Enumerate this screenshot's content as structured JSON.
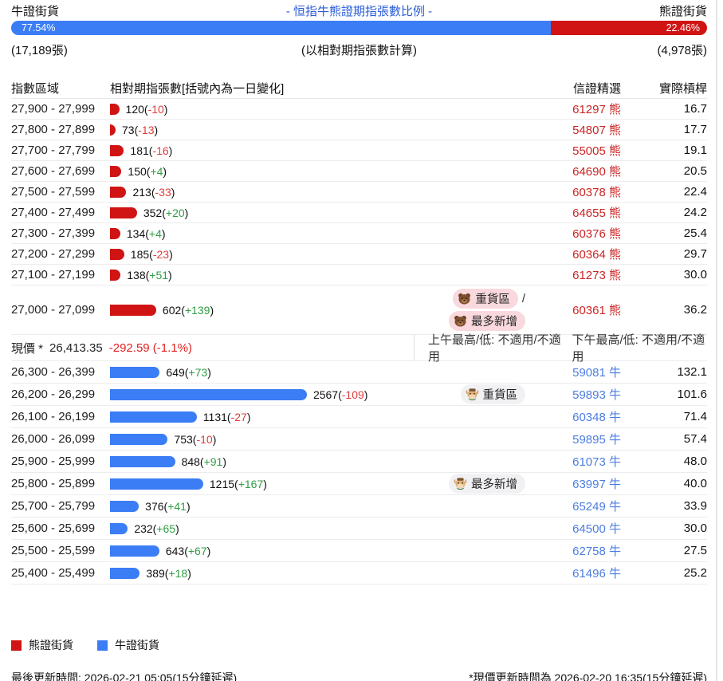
{
  "header": {
    "left_label": "牛證街貨",
    "title": "- 恒指牛熊證期指張數比例 -",
    "right_label": "熊證街貨",
    "bull_pct": "77.54%",
    "bear_pct": "22.46%",
    "bull_count": "(17,189張)",
    "calc_note": "(以相對期指張數計算)",
    "bear_count": "(4,978張)"
  },
  "columns": {
    "range": "指數區域",
    "contracts": "相對期指張數[括號內為一日變化]",
    "pick": "信證精選",
    "leverage": "實際槓桿"
  },
  "mid_row": {
    "price_label": "現價 *",
    "price": "26,413.35",
    "change": "-292.59 (-1.1%)",
    "am": "上午最高/低: 不適用/不適用",
    "pm": "下午最高/低: 不適用/不適用"
  },
  "colors": {
    "bull": "#3b7df5",
    "bear": "#d01414",
    "title_blue": "#2b5cd9",
    "positive": "#2e9e44",
    "negative": "#e03c3c",
    "pick_bull": "#4d7ee0",
    "pick_bear": "#cc2525"
  },
  "chart_data": {
    "type": "bar",
    "orientation": "horizontal",
    "title": "- 恒指牛熊證期指張數比例 -",
    "bull_pct": 77.54,
    "bear_pct": 22.46,
    "bull_total_contracts": 17189,
    "bear_total_contracts": 4978,
    "groups": [
      {
        "name": "熊證街貨",
        "type": "bear",
        "color": "#d01414",
        "rows": [
          {
            "range": "27,900 - 27,999",
            "value": 120,
            "change": -10,
            "pick_code": "61297",
            "pick_type": "熊",
            "leverage": "16.7",
            "badges": []
          },
          {
            "range": "27,800 - 27,899",
            "value": 73,
            "change": -13,
            "pick_code": "54807",
            "pick_type": "熊",
            "leverage": "17.7",
            "badges": []
          },
          {
            "range": "27,700 - 27,799",
            "value": 181,
            "change": -16,
            "pick_code": "55005",
            "pick_type": "熊",
            "leverage": "19.1",
            "badges": []
          },
          {
            "range": "27,600 - 27,699",
            "value": 150,
            "change": 4,
            "pick_code": "64690",
            "pick_type": "熊",
            "leverage": "20.5",
            "badges": []
          },
          {
            "range": "27,500 - 27,599",
            "value": 213,
            "change": -33,
            "pick_code": "60378",
            "pick_type": "熊",
            "leverage": "22.4",
            "badges": []
          },
          {
            "range": "27,400 - 27,499",
            "value": 352,
            "change": 20,
            "pick_code": "64655",
            "pick_type": "熊",
            "leverage": "24.2",
            "badges": []
          },
          {
            "range": "27,300 - 27,399",
            "value": 134,
            "change": 4,
            "pick_code": "60376",
            "pick_type": "熊",
            "leverage": "25.4",
            "badges": []
          },
          {
            "range": "27,200 - 27,299",
            "value": 185,
            "change": -23,
            "pick_code": "60364",
            "pick_type": "熊",
            "leverage": "29.7",
            "badges": []
          },
          {
            "range": "27,100 - 27,199",
            "value": 138,
            "change": 51,
            "pick_code": "61273",
            "pick_type": "熊",
            "leverage": "30.0",
            "badges": []
          },
          {
            "range": "27,000 - 27,099",
            "value": 602,
            "change": 139,
            "pick_code": "60361",
            "pick_type": "熊",
            "leverage": "36.2",
            "badges": [
              {
                "label": "重貨區",
                "name": "heavy-zone-badge"
              },
              {
                "label": "最多新增",
                "name": "most-added-badge"
              }
            ]
          }
        ]
      },
      {
        "name": "牛證街貨",
        "type": "bull",
        "color": "#3b7df5",
        "rows": [
          {
            "range": "26,300 - 26,399",
            "value": 649,
            "change": 73,
            "pick_code": "59081",
            "pick_type": "牛",
            "leverage": "132.1",
            "badges": []
          },
          {
            "range": "26,200 - 26,299",
            "value": 2567,
            "change": -109,
            "pick_code": "59893",
            "pick_type": "牛",
            "leverage": "101.6",
            "badges": [
              {
                "label": "重貨區",
                "name": "heavy-zone-badge"
              }
            ]
          },
          {
            "range": "26,100 - 26,199",
            "value": 1131,
            "change": -27,
            "pick_code": "60348",
            "pick_type": "牛",
            "leverage": "71.4",
            "badges": []
          },
          {
            "range": "26,000 - 26,099",
            "value": 753,
            "change": -10,
            "pick_code": "59895",
            "pick_type": "牛",
            "leverage": "57.4",
            "badges": []
          },
          {
            "range": "25,900 - 25,999",
            "value": 848,
            "change": 91,
            "pick_code": "61073",
            "pick_type": "牛",
            "leverage": "48.0",
            "badges": []
          },
          {
            "range": "25,800 - 25,899",
            "value": 1215,
            "change": 167,
            "pick_code": "63997",
            "pick_type": "牛",
            "leverage": "40.0",
            "badges": [
              {
                "label": "最多新增",
                "name": "most-added-badge"
              }
            ]
          },
          {
            "range": "25,700 - 25,799",
            "value": 376,
            "change": 41,
            "pick_code": "65249",
            "pick_type": "牛",
            "leverage": "33.9",
            "badges": []
          },
          {
            "range": "25,600 - 25,699",
            "value": 232,
            "change": 65,
            "pick_code": "64500",
            "pick_type": "牛",
            "leverage": "30.0",
            "badges": []
          },
          {
            "range": "25,500 - 25,599",
            "value": 643,
            "change": 67,
            "pick_code": "62758",
            "pick_type": "牛",
            "leverage": "27.5",
            "badges": []
          },
          {
            "range": "25,400 - 25,499",
            "value": 389,
            "change": 18,
            "pick_code": "61496",
            "pick_type": "牛",
            "leverage": "25.2",
            "badges": []
          }
        ]
      }
    ]
  },
  "legend": [
    "熊證街貨",
    "牛證街貨"
  ],
  "footer": {
    "last_update": "最後更新時間: 2026-02-21 05:05(15分鐘延遲)",
    "price_update": "*現價更新時間為 2026-02-20 16:35(15分鐘延遲)"
  }
}
